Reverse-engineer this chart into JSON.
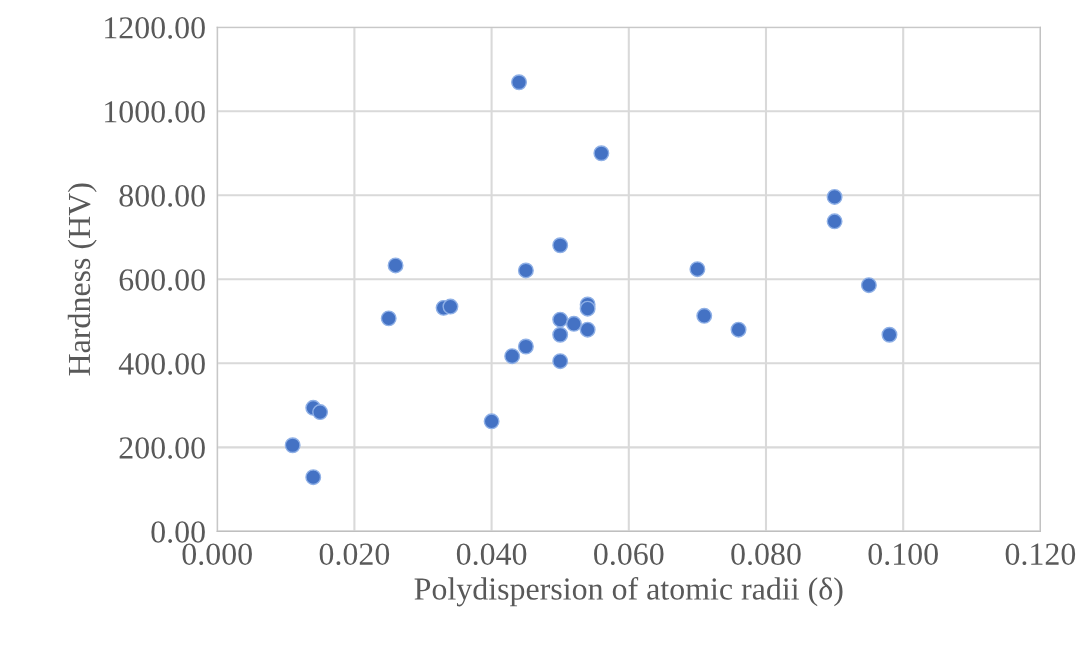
{
  "chart_data": {
    "type": "scatter",
    "xlabel": "Polydispersion of atomic radii (δ)",
    "ylabel": "Hardness (HV)",
    "x": [
      0.044,
      0.056,
      0.05,
      0.026,
      0.045,
      0.025,
      0.033,
      0.034,
      0.054,
      0.054,
      0.05,
      0.052,
      0.054,
      0.05,
      0.045,
      0.043,
      0.05,
      0.04,
      0.014,
      0.015,
      0.011,
      0.014,
      0.07,
      0.071,
      0.076,
      0.09,
      0.09,
      0.095,
      0.098
    ],
    "values": [
      1069,
      900,
      681,
      633,
      621,
      507,
      532,
      535,
      540,
      530,
      504,
      494,
      480,
      468,
      440,
      417,
      405,
      262,
      294,
      284,
      205,
      129,
      624,
      513,
      480,
      796,
      738,
      586,
      468
    ],
    "color": "#4472c4",
    "marker": "circle",
    "grid": true,
    "xlim": [
      0,
      0.12
    ],
    "xticks": [
      {
        "value": 0,
        "label": "0.000"
      },
      {
        "value": 0.02,
        "label": "0.020"
      },
      {
        "value": 0.04,
        "label": "0.040"
      },
      {
        "value": 0.06,
        "label": "0.060"
      },
      {
        "value": 0.08,
        "label": "0.080"
      },
      {
        "value": 0.1,
        "label": "0.100"
      },
      {
        "value": 0.12,
        "label": "0.120"
      }
    ],
    "ylim": [
      0,
      1200
    ],
    "yticks": [
      {
        "value": 0,
        "label": "0.00"
      },
      {
        "value": 200,
        "label": "200.00"
      },
      {
        "value": 400,
        "label": "400.00"
      },
      {
        "value": 600,
        "label": "600.00"
      },
      {
        "value": 800,
        "label": "800.00"
      },
      {
        "value": 1000,
        "label": "1000.00"
      },
      {
        "value": 1200,
        "label": "1200.00"
      }
    ]
  }
}
